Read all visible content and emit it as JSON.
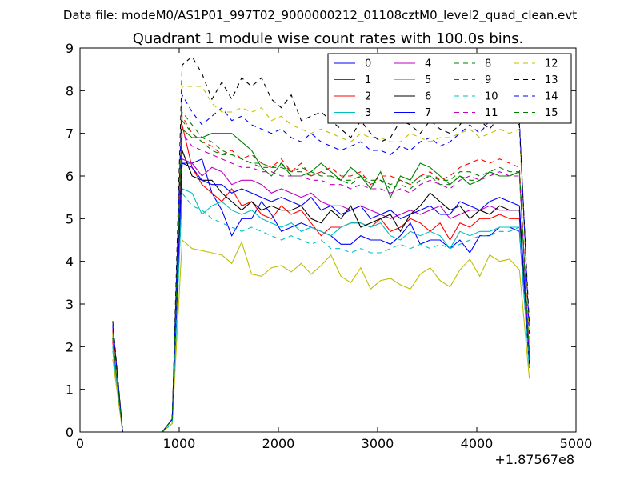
{
  "chart_data": {
    "type": "line",
    "suptitle": "Data file: modeM0/AS1P01_997T02_9000000212_01108cztM0_level2_quad_clean.evt",
    "title": "Quadrant 1 module wise count rates with 100.0s bins.",
    "xlabel": "",
    "ylabel": "",
    "x_offset_label": "+1.87567e8",
    "xlim": [
      0,
      5000
    ],
    "ylim": [
      0,
      9
    ],
    "xticks": [
      0,
      1000,
      2000,
      3000,
      4000,
      5000
    ],
    "xtick_labels": [
      "0",
      "1000",
      "2000",
      "3000",
      "4000",
      "5000"
    ],
    "yticks": [
      0,
      1,
      2,
      3,
      4,
      5,
      6,
      7,
      8,
      9
    ],
    "ytick_labels": [
      "0",
      "1",
      "2",
      "3",
      "4",
      "5",
      "6",
      "7",
      "8",
      "9"
    ],
    "legend_position": "top-right",
    "grid": false,
    "x": [
      330,
      430,
      530,
      630,
      730,
      830,
      930,
      1030,
      1130,
      1230,
      1330,
      1430,
      1530,
      1630,
      1730,
      1830,
      1930,
      2030,
      2130,
      2230,
      2330,
      2430,
      2530,
      2630,
      2730,
      2830,
      2930,
      3030,
      3130,
      3230,
      3330,
      3430,
      3530,
      3630,
      3730,
      3830,
      3930,
      4030,
      4130,
      4230,
      4330,
      4430,
      4530
    ],
    "series": [
      {
        "name": "0",
        "color": "#0000ff",
        "dash": "solid",
        "values": [
          2.5,
          0,
          0,
          0,
          0,
          0,
          0.3,
          6.3,
          6.3,
          6.4,
          5.6,
          5.2,
          4.6,
          5.0,
          5.0,
          5.4,
          5.1,
          4.7,
          4.8,
          4.9,
          4.8,
          4.7,
          4.6,
          4.4,
          4.4,
          4.6,
          4.5,
          4.5,
          4.4,
          4.6,
          4.9,
          4.4,
          4.5,
          4.5,
          4.3,
          4.5,
          4.2,
          4.6,
          4.6,
          4.8,
          4.8,
          4.7,
          1.5
        ]
      },
      {
        "name": "1",
        "color": "#008000",
        "dash": "solid",
        "values": [
          2.2,
          0,
          0,
          0,
          0,
          0,
          0.3,
          7.1,
          6.9,
          6.9,
          7.0,
          7.0,
          7.0,
          6.8,
          6.6,
          6.2,
          6.0,
          6.3,
          6.0,
          6.0,
          6.1,
          6.3,
          6.1,
          5.9,
          6.2,
          6.0,
          5.7,
          6.1,
          5.5,
          6.0,
          5.9,
          6.3,
          6.2,
          6.0,
          5.8,
          6.0,
          5.8,
          5.9,
          6.1,
          6.0,
          6.0,
          6.1,
          1.8
        ]
      },
      {
        "name": "2",
        "color": "#ff0000",
        "dash": "solid",
        "values": [
          2.1,
          0,
          0,
          0,
          0,
          0,
          0.3,
          7.2,
          6.2,
          5.8,
          5.6,
          5.4,
          5.7,
          5.3,
          5.4,
          5.1,
          5.0,
          5.3,
          5.1,
          5.2,
          4.9,
          4.6,
          4.8,
          4.8,
          4.9,
          4.9,
          4.8,
          5.0,
          4.7,
          4.8,
          5.0,
          4.9,
          4.7,
          4.9,
          4.5,
          4.9,
          4.8,
          5.0,
          5.0,
          5.1,
          5.0,
          5.0,
          1.7
        ]
      },
      {
        "name": "3",
        "color": "#00bfbf",
        "dash": "solid",
        "values": [
          1.9,
          0,
          0,
          0,
          0,
          0,
          0.2,
          5.7,
          5.6,
          5.1,
          5.3,
          5.4,
          5.2,
          5.1,
          5.2,
          5.0,
          4.9,
          4.8,
          4.9,
          4.7,
          4.8,
          4.7,
          4.6,
          4.8,
          4.9,
          4.9,
          4.8,
          4.9,
          4.6,
          4.5,
          4.7,
          4.6,
          4.7,
          4.6,
          4.3,
          4.7,
          4.6,
          4.7,
          4.7,
          4.8,
          4.8,
          4.8,
          1.5
        ]
      },
      {
        "name": "4",
        "color": "#bf00bf",
        "dash": "solid",
        "values": [
          2.2,
          0,
          0,
          0,
          0,
          0,
          0.3,
          6.4,
          6.3,
          6.0,
          6.2,
          6.1,
          5.8,
          5.9,
          5.9,
          5.8,
          5.6,
          5.7,
          5.6,
          5.5,
          5.6,
          5.4,
          5.3,
          5.3,
          5.2,
          5.3,
          5.2,
          5.1,
          5.0,
          5.1,
          5.2,
          5.1,
          5.2,
          5.3,
          5.0,
          5.1,
          5.2,
          5.2,
          5.3,
          5.2,
          5.2,
          5.2,
          1.7
        ]
      },
      {
        "name": "5",
        "color": "#bfbf00",
        "dash": "solid",
        "values": [
          1.7,
          0,
          0,
          0,
          0,
          0,
          0.2,
          4.5,
          4.3,
          4.25,
          4.2,
          4.15,
          3.95,
          4.45,
          3.7,
          3.65,
          3.85,
          3.9,
          3.75,
          3.95,
          3.7,
          3.9,
          4.15,
          3.65,
          3.5,
          3.85,
          3.35,
          3.55,
          3.6,
          3.45,
          3.35,
          3.7,
          3.85,
          3.55,
          3.4,
          3.8,
          4.05,
          3.65,
          4.15,
          4.0,
          4.05,
          3.8,
          1.25
        ]
      },
      {
        "name": "6",
        "color": "#000000",
        "dash": "solid",
        "values": [
          2.3,
          0,
          0,
          0,
          0,
          0,
          0.3,
          6.6,
          6.0,
          5.9,
          5.9,
          5.6,
          5.4,
          5.2,
          5.4,
          5.2,
          5.3,
          5.2,
          5.2,
          5.3,
          5.0,
          4.9,
          5.2,
          5.0,
          5.3,
          4.8,
          4.9,
          5.0,
          5.1,
          4.7,
          5.1,
          5.3,
          5.6,
          5.4,
          5.2,
          5.3,
          5.0,
          5.2,
          5.1,
          5.3,
          5.2,
          5.2,
          1.6
        ]
      },
      {
        "name": "7",
        "color": "#0000ff",
        "dash": "solid",
        "values": [
          2.4,
          0,
          0,
          0,
          0,
          0,
          0.3,
          6.3,
          6.2,
          5.9,
          5.8,
          5.8,
          5.6,
          5.7,
          5.6,
          5.5,
          5.4,
          5.5,
          5.4,
          5.3,
          5.5,
          5.2,
          5.3,
          5.1,
          5.2,
          5.3,
          5.0,
          5.1,
          5.2,
          5.0,
          5.1,
          5.2,
          5.3,
          5.1,
          5.1,
          5.4,
          5.3,
          5.2,
          5.4,
          5.5,
          5.4,
          5.3,
          1.7
        ]
      },
      {
        "name": "8",
        "color": "#008000",
        "dash": "dashed",
        "values": [
          2.3,
          0,
          0,
          0,
          0,
          0,
          0.3,
          7.5,
          7.2,
          6.9,
          6.8,
          6.6,
          6.5,
          6.4,
          6.3,
          6.2,
          6.2,
          6.3,
          6.1,
          6.2,
          6.1,
          6.0,
          6.0,
          5.9,
          5.8,
          6.0,
          5.8,
          5.9,
          5.7,
          5.8,
          5.7,
          5.9,
          6.0,
          5.8,
          5.8,
          6.0,
          5.9,
          5.9,
          6.1,
          6.0,
          6.0,
          6.1,
          1.9
        ]
      },
      {
        "name": "9",
        "color": "#ff0000",
        "dash": "dashed",
        "values": [
          2.4,
          0,
          0,
          0,
          0,
          0,
          0.3,
          7.4,
          7.0,
          6.8,
          6.7,
          6.5,
          6.6,
          6.4,
          6.5,
          6.3,
          6.2,
          6.4,
          6.1,
          6.3,
          6.0,
          6.1,
          6.2,
          6.0,
          6.0,
          6.1,
          5.8,
          6.0,
          6.0,
          5.9,
          5.8,
          6.0,
          6.1,
          5.9,
          6.0,
          6.2,
          6.3,
          6.4,
          6.3,
          6.4,
          6.3,
          6.2,
          1.9
        ]
      },
      {
        "name": "10",
        "color": "#00bfbf",
        "dash": "dashed",
        "values": [
          2.0,
          0,
          0,
          0,
          0,
          0,
          0.2,
          5.6,
          5.3,
          5.2,
          5.0,
          4.9,
          4.8,
          4.7,
          4.8,
          4.7,
          4.6,
          4.5,
          4.6,
          4.5,
          4.4,
          4.5,
          4.3,
          4.3,
          4.2,
          4.3,
          4.2,
          4.2,
          4.3,
          4.4,
          4.3,
          4.4,
          4.3,
          4.4,
          4.3,
          4.4,
          4.5,
          4.6,
          4.6,
          4.7,
          4.7,
          4.8,
          1.5
        ]
      },
      {
        "name": "11",
        "color": "#bf00bf",
        "dash": "dashed",
        "values": [
          2.2,
          0,
          0,
          0,
          0,
          0,
          0.3,
          7.0,
          6.7,
          6.6,
          6.5,
          6.4,
          6.3,
          6.2,
          6.2,
          6.1,
          6.1,
          6.0,
          6.0,
          6.0,
          5.9,
          5.9,
          5.8,
          5.8,
          5.7,
          5.8,
          5.7,
          5.7,
          5.6,
          5.7,
          5.6,
          5.8,
          5.9,
          5.8,
          5.7,
          5.9,
          6.0,
          5.9,
          6.0,
          6.1,
          6.0,
          6.0,
          1.8
        ]
      },
      {
        "name": "12",
        "color": "#bfbf00",
        "dash": "dashed",
        "values": [
          2.3,
          0,
          0,
          0,
          0,
          0,
          0.3,
          8.1,
          8.1,
          8.1,
          7.7,
          7.5,
          7.5,
          7.6,
          7.5,
          7.6,
          7.3,
          7.4,
          7.2,
          7.1,
          7.0,
          7.1,
          7.0,
          6.9,
          6.8,
          7.0,
          6.9,
          6.9,
          6.8,
          6.8,
          7.0,
          6.9,
          6.8,
          6.9,
          6.9,
          7.0,
          7.1,
          6.9,
          7.0,
          7.1,
          7.0,
          7.1,
          2.2
        ]
      },
      {
        "name": "13",
        "color": "#000000",
        "dash": "dashed",
        "values": [
          2.6,
          0,
          0,
          0,
          0,
          0,
          0.3,
          8.6,
          8.8,
          8.4,
          7.8,
          8.2,
          7.8,
          8.3,
          8.1,
          8.3,
          7.8,
          7.6,
          7.9,
          7.3,
          7.4,
          7.5,
          7.3,
          7.1,
          6.9,
          7.3,
          7.0,
          6.8,
          6.9,
          7.3,
          7.2,
          7.0,
          7.3,
          7.1,
          7.0,
          7.2,
          7.5,
          7.3,
          7.1,
          7.4,
          7.3,
          7.2,
          2.5
        ]
      },
      {
        "name": "14",
        "color": "#0000ff",
        "dash": "dashed",
        "values": [
          2.5,
          0,
          0,
          0,
          0,
          0,
          0.3,
          7.9,
          7.5,
          7.2,
          7.4,
          7.6,
          7.3,
          7.4,
          7.2,
          7.1,
          7.0,
          7.1,
          6.9,
          6.8,
          7.0,
          6.8,
          6.7,
          6.6,
          6.7,
          6.8,
          6.6,
          6.6,
          6.5,
          6.7,
          6.6,
          6.8,
          6.9,
          6.7,
          6.8,
          7.0,
          7.2,
          7.0,
          7.3,
          7.5,
          7.6,
          7.3,
          2.3
        ]
      },
      {
        "name": "15",
        "color": "#008000",
        "dash": "dashed",
        "values": [
          2.2,
          0,
          0,
          0,
          0,
          0,
          0.3,
          7.3,
          7.0,
          6.8,
          6.6,
          6.5,
          6.5,
          6.4,
          6.3,
          6.3,
          6.2,
          6.2,
          6.1,
          6.1,
          6.0,
          6.1,
          6.0,
          5.9,
          5.9,
          6.0,
          5.9,
          5.9,
          5.8,
          5.9,
          5.8,
          6.0,
          6.0,
          5.9,
          5.9,
          6.1,
          6.1,
          6.0,
          6.1,
          6.2,
          6.1,
          6.1,
          1.8
        ]
      }
    ]
  }
}
